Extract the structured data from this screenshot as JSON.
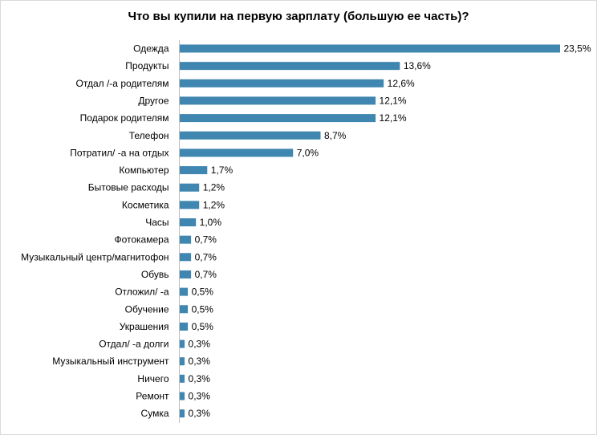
{
  "chart_data": {
    "type": "bar",
    "orientation": "horizontal",
    "title": "Что вы купили на первую зарплату (большую ее часть)?",
    "xlabel": "",
    "ylabel": "",
    "xlim": [
      0,
      23.5
    ],
    "grid": false,
    "legend": "none",
    "bar_color": "#3f86b0",
    "categories": [
      "Одежда",
      "Продукты",
      "Отдал /-а родителям",
      "Другое",
      "Подарок родителям",
      "Телефон",
      "Потратил/ -а на отдых",
      "Компьютер",
      "Бытовые расходы",
      "Косметика",
      "Часы",
      "Фотокамера",
      "Музыкальный центр/магнитофон",
      "Обувь",
      "Отложил/ -а",
      "Обучение",
      "Украшения",
      "Отдал/ -а долги",
      "Музыкальный инструмент",
      "Ничего",
      "Ремонт",
      "Сумка"
    ],
    "values": [
      23.5,
      13.6,
      12.6,
      12.1,
      12.1,
      8.7,
      7.0,
      1.7,
      1.2,
      1.2,
      1.0,
      0.7,
      0.7,
      0.7,
      0.5,
      0.5,
      0.5,
      0.3,
      0.3,
      0.3,
      0.3,
      0.3
    ],
    "data_labels": [
      "23,5%",
      "13,6%",
      "12,6%",
      "12,1%",
      "12,1%",
      "8,7%",
      "7,0%",
      "1,7%",
      "1,2%",
      "1,2%",
      "1,0%",
      "0,7%",
      "0,7%",
      "0,7%",
      "0,5%",
      "0,5%",
      "0,5%",
      "0,3%",
      "0,3%",
      "0,3%",
      "0,3%",
      "0,3%"
    ]
  }
}
